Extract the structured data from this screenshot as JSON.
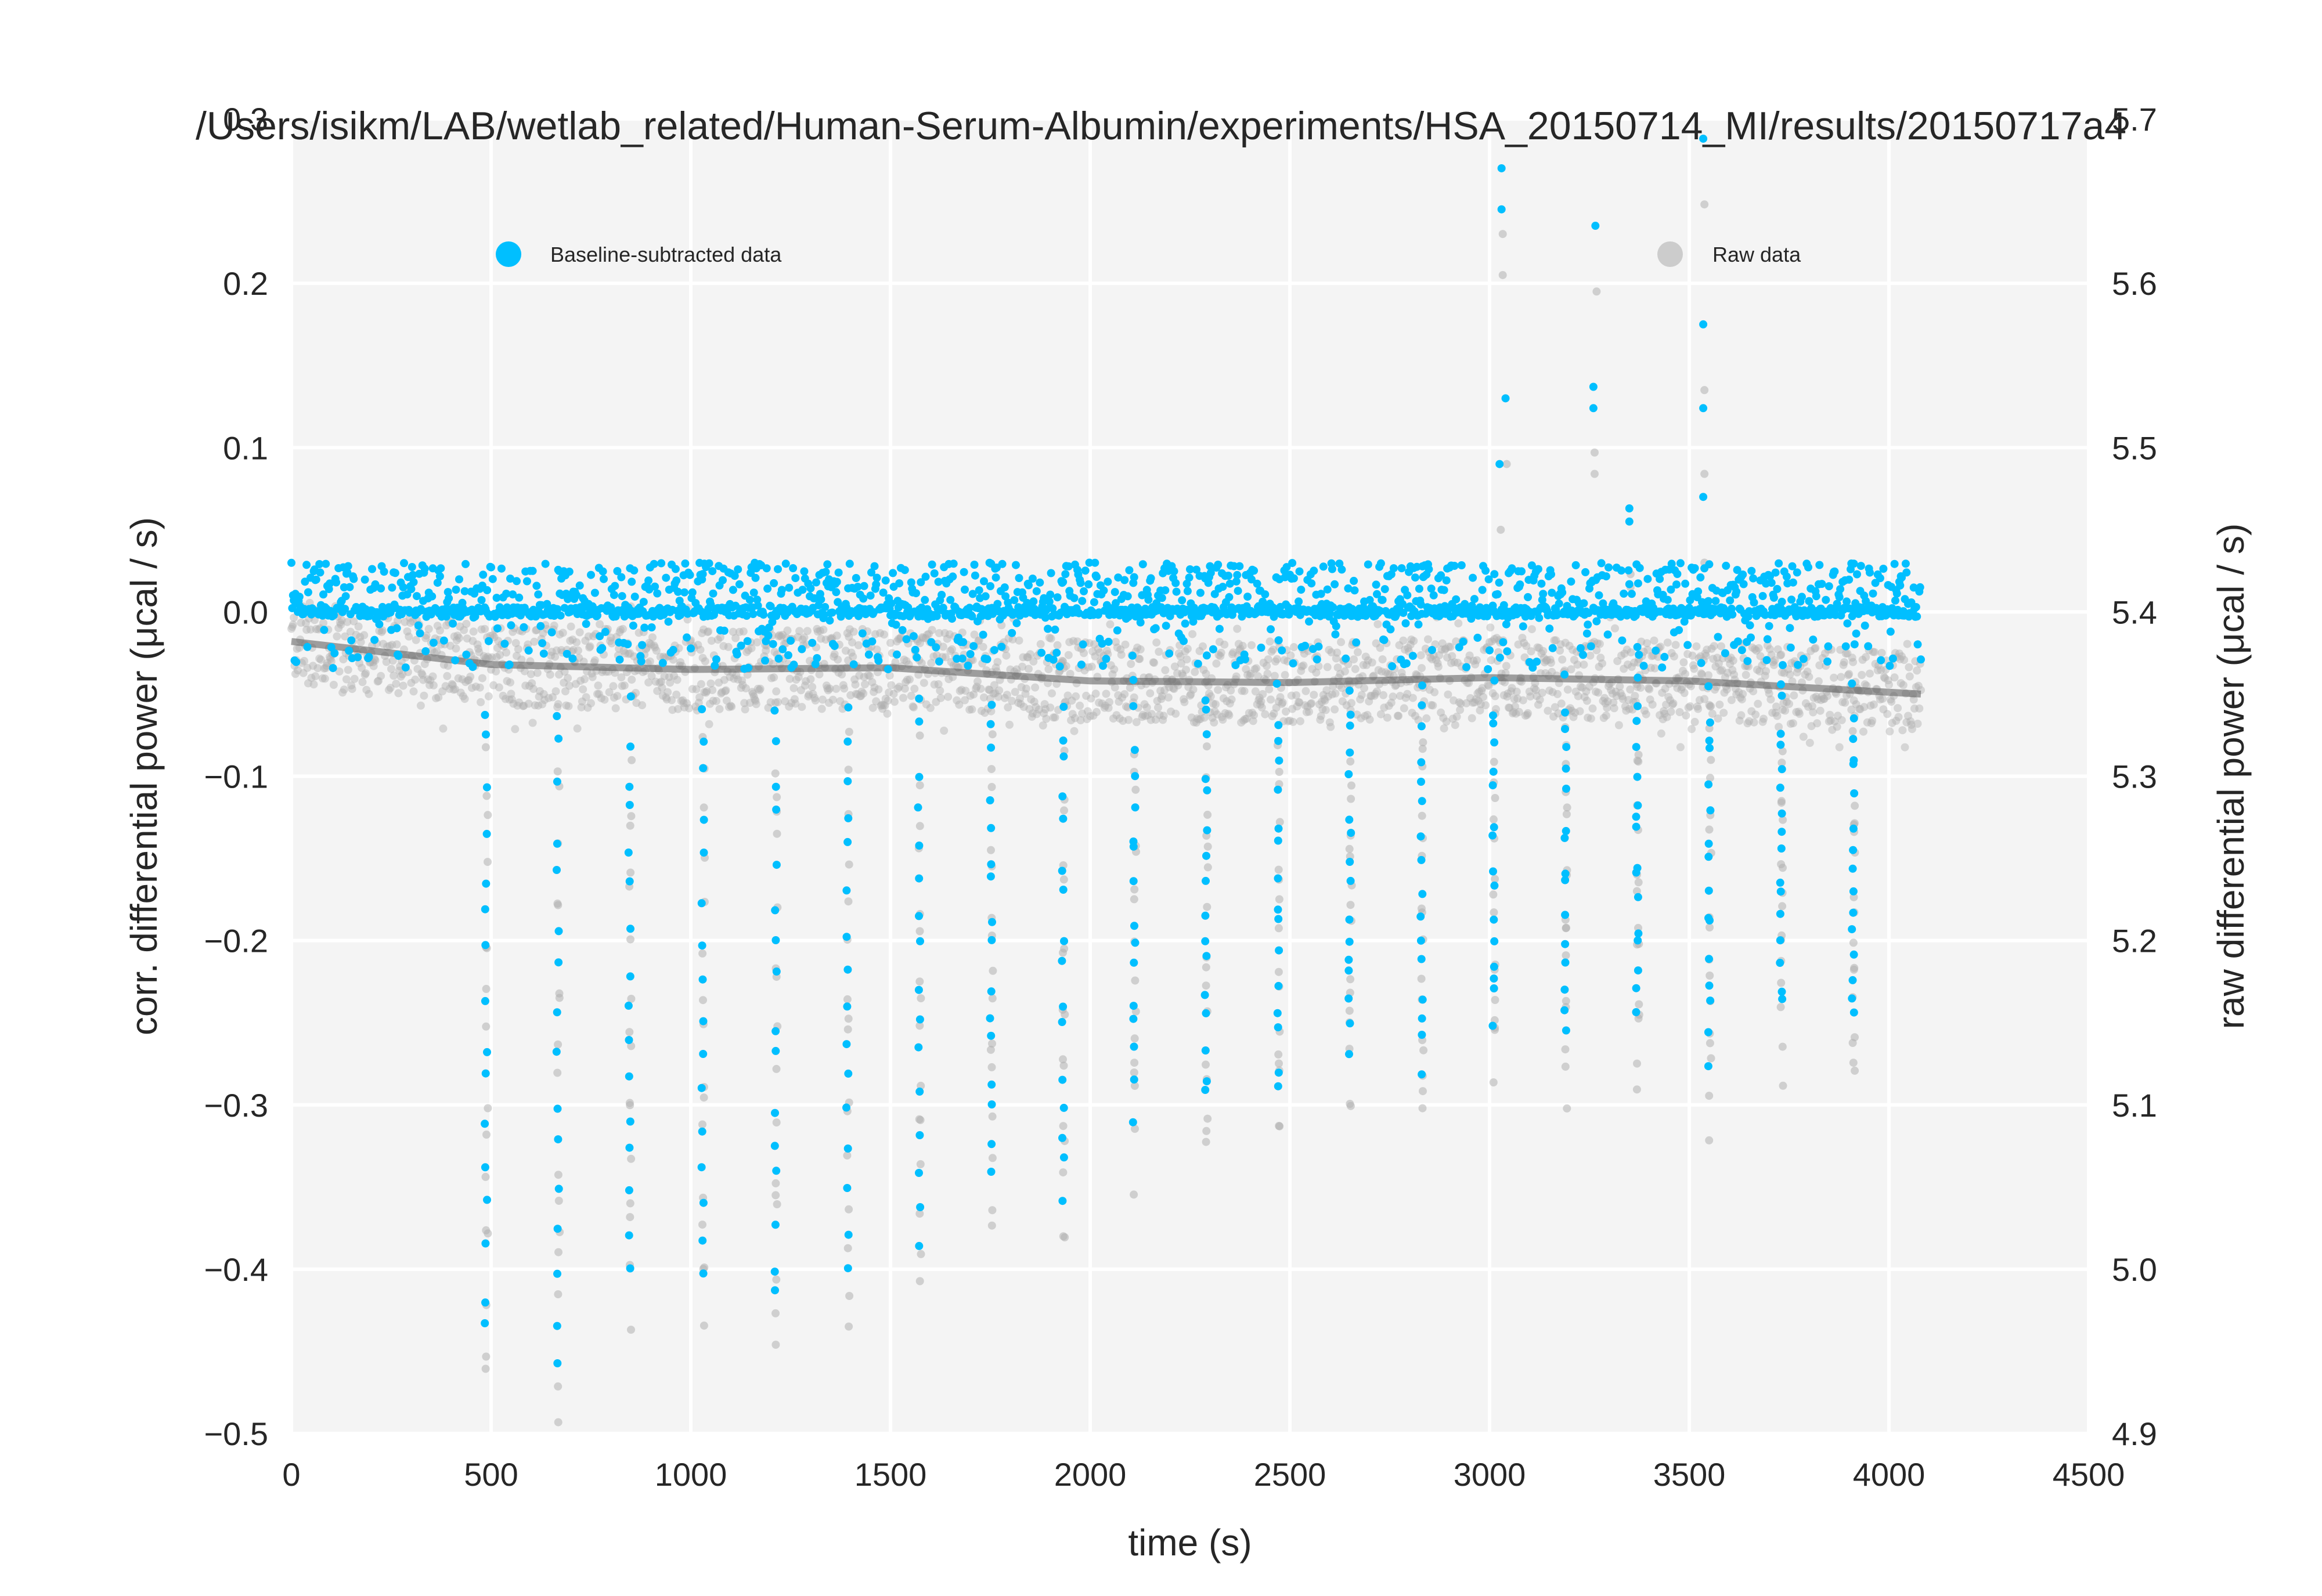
{
  "chart_data": {
    "type": "scatter",
    "title": "/Users/isikm/LAB/wetlab_related/Human-Serum-Albumin/experiments/HSA_20150714_MI/results/20150717a4",
    "xlabel": "time (s)",
    "ylabel": "corr. differential power (μcal / s)",
    "y2label": "raw differential power (μcal / s)",
    "xlim": [
      0,
      4500
    ],
    "ylim": [
      -0.5,
      0.3
    ],
    "y2lim": [
      4.9,
      5.7
    ],
    "xticks": [
      "0",
      "500",
      "1000",
      "1500",
      "2000",
      "2500",
      "3000",
      "3500",
      "4000",
      "4500"
    ],
    "yticks": [
      "−0.5",
      "−0.4",
      "−0.3",
      "−0.2",
      "−0.1",
      "0.0",
      "0.1",
      "0.2",
      "0.3"
    ],
    "y2ticks": [
      "4.9",
      "5.0",
      "5.1",
      "5.2",
      "5.3",
      "5.4",
      "5.5",
      "5.6",
      "5.7"
    ],
    "grid": true,
    "legend": {
      "placement": "top",
      "entries": [
        "Baseline-subtracted data",
        "Raw data"
      ]
    },
    "colors": {
      "corrected": "#00bfff",
      "raw": "#b0b0b0",
      "baseline": "#555555",
      "background": "#f4f4f4"
    },
    "injection_times": [
      487,
      667,
      847,
      1030,
      1212,
      1392,
      1572,
      1752,
      1932,
      2110,
      2290,
      2470,
      2650,
      2830,
      3010,
      3190,
      3370,
      3550,
      3730,
      3910
    ],
    "injection_peak_minima": [
      -0.44,
      -0.455,
      -0.4,
      -0.41,
      -0.42,
      -0.4,
      -0.38,
      -0.34,
      -0.36,
      -0.305,
      -0.295,
      -0.29,
      -0.27,
      -0.275,
      -0.25,
      -0.25,
      -0.245,
      -0.27,
      -0.24,
      -0.25
    ],
    "positive_spikes": [
      {
        "x": 3030,
        "y": 0.27
      },
      {
        "x": 3030,
        "y": 0.245
      },
      {
        "x": 3040,
        "y": 0.13
      },
      {
        "x": 3025,
        "y": 0.09
      },
      {
        "x": 3265,
        "y": 0.235
      },
      {
        "x": 3260,
        "y": 0.137
      },
      {
        "x": 3260,
        "y": 0.124
      },
      {
        "x": 3350,
        "y": 0.063
      },
      {
        "x": 3350,
        "y": 0.055
      },
      {
        "x": 3535,
        "y": 0.288
      },
      {
        "x": 3535,
        "y": 0.175
      },
      {
        "x": 3535,
        "y": 0.124
      },
      {
        "x": 3535,
        "y": 0.07
      }
    ],
    "raw_baseline": [
      {
        "x": 0,
        "y": 5.382
      },
      {
        "x": 500,
        "y": 5.368
      },
      {
        "x": 1000,
        "y": 5.365
      },
      {
        "x": 1500,
        "y": 5.366
      },
      {
        "x": 2000,
        "y": 5.358
      },
      {
        "x": 2500,
        "y": 5.357
      },
      {
        "x": 3000,
        "y": 5.36
      },
      {
        "x": 3500,
        "y": 5.358
      },
      {
        "x": 4080,
        "y": 5.35
      }
    ],
    "data_xmax": 4080
  }
}
